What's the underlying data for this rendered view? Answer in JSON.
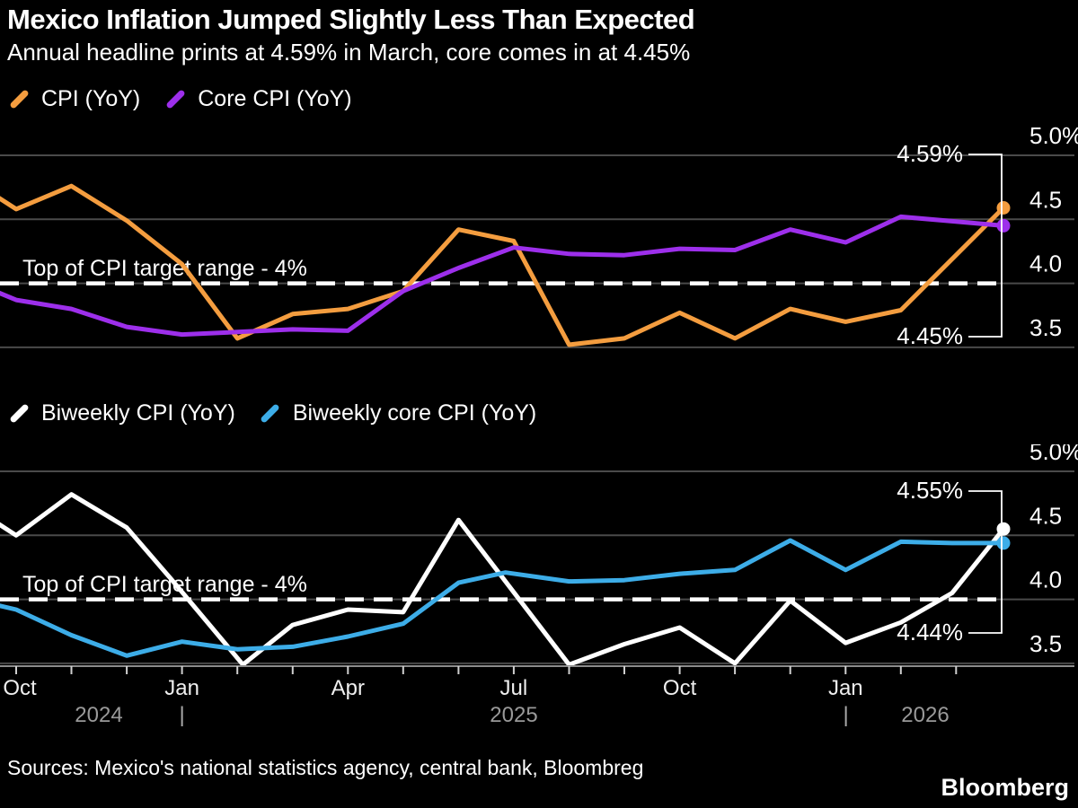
{
  "header": {
    "title": "Mexico Inflation Jumped Slightly Less Than Expected",
    "subtitle": "Annual headline prints at 4.59% in March, core comes in at 4.45%"
  },
  "colors": {
    "background": "#000000",
    "grid": "#4a4a4a",
    "axis": "#8c8c8c",
    "cpi_orange": "#f49d3f",
    "core_purple": "#9d2feb",
    "biweekly_white": "#ffffff",
    "biweekly_core_blue": "#3dade8",
    "year_text": "#999999"
  },
  "y_axis": {
    "ticks": [
      {
        "label": "5.0%",
        "value": 5.0
      },
      {
        "label": "4.5",
        "value": 4.5
      },
      {
        "label": "4.0",
        "value": 4.0
      },
      {
        "label": "3.5",
        "value": 3.5
      }
    ]
  },
  "x_axis": {
    "month_labels": [
      {
        "label": "Oct",
        "mi": 0
      },
      {
        "label": "Jan",
        "mi": 3
      },
      {
        "label": "Apr",
        "mi": 6
      },
      {
        "label": "Jul",
        "mi": 9
      },
      {
        "label": "Oct",
        "mi": 12
      },
      {
        "label": "Jan",
        "mi": 15
      }
    ],
    "year_labels": [
      {
        "label": "2024",
        "x": 110
      },
      {
        "label": "2025",
        "x": 572
      },
      {
        "label": "2026",
        "x": 1030
      }
    ],
    "year_dividers": [
      {
        "label": "|",
        "x": 202.6
      },
      {
        "label": "|",
        "x": 941.6
      }
    ]
  },
  "chart_data": [
    {
      "type": "line",
      "panel": "top",
      "x_categories": [
        "Oct 2024",
        "Nov 2024",
        "Dec 2024",
        "Jan 2025",
        "Feb 2025",
        "Mar 2025",
        "Apr 2025",
        "May 2025",
        "Jun 2025",
        "Jul 2025",
        "Aug 2025",
        "Sep 2025",
        "Oct 2025",
        "Nov 2025",
        "Dec 2025",
        "Jan 2026",
        "Feb 2026",
        "Mar 2026"
      ],
      "x_note": "points are [monthIndex, percent]; 0 = Oct 2024 ... 17 = Mar 2026; fractional indices = lead-in/intermediate readings",
      "ylim": [
        3.5,
        5.0
      ],
      "grid": true,
      "legend_position": "top-left",
      "target_line": {
        "value": 4.0,
        "label": "Top of CPI target range - 4%"
      },
      "series": [
        {
          "name": "CPI (YoY)",
          "color": "#f49d3f",
          "end_label": "4.59%",
          "end_value": 4.59,
          "points": [
            [
              -0.5,
              4.72
            ],
            [
              0,
              4.58
            ],
            [
              1,
              4.76
            ],
            [
              2,
              4.49
            ],
            [
              3,
              4.15
            ],
            [
              4,
              3.57
            ],
            [
              5,
              3.76
            ],
            [
              6,
              3.8
            ],
            [
              7,
              3.94
            ],
            [
              8,
              4.42
            ],
            [
              9,
              4.33
            ],
            [
              10,
              3.52
            ],
            [
              11,
              3.57
            ],
            [
              12,
              3.77
            ],
            [
              13,
              3.57
            ],
            [
              14,
              3.8
            ],
            [
              15,
              3.7
            ],
            [
              16,
              3.79
            ],
            [
              17,
              4.59
            ]
          ]
        },
        {
          "name": "Core CPI (YoY)",
          "color": "#9d2feb",
          "end_label": "4.45%",
          "end_value": 4.45,
          "points": [
            [
              -0.5,
              3.96
            ],
            [
              0,
              3.87
            ],
            [
              1,
              3.8
            ],
            [
              2,
              3.66
            ],
            [
              3,
              3.6
            ],
            [
              4,
              3.62
            ],
            [
              5,
              3.64
            ],
            [
              6,
              3.63
            ],
            [
              7,
              3.94
            ],
            [
              8,
              4.12
            ],
            [
              9,
              4.28
            ],
            [
              10,
              4.23
            ],
            [
              11,
              4.22
            ],
            [
              12,
              4.27
            ],
            [
              13,
              4.26
            ],
            [
              14,
              4.42
            ],
            [
              15,
              4.32
            ],
            [
              16,
              4.52
            ],
            [
              17,
              4.45
            ]
          ]
        }
      ]
    },
    {
      "type": "line",
      "panel": "bottom",
      "x_categories": [
        "Oct 2024",
        "Nov 2024",
        "Dec 2024",
        "Jan 2025",
        "Feb 2025",
        "Mar 2025",
        "Apr 2025",
        "May 2025",
        "Jun 2025",
        "Jul 2025",
        "Aug 2025",
        "Sep 2025",
        "Oct 2025",
        "Nov 2025",
        "Dec 2025",
        "Jan 2026",
        "Feb 2026",
        "Mar 2026"
      ],
      "x_note": "biweekly series; points are [monthIndex, percent] with fractional indices for half-month readings",
      "ylim": [
        3.5,
        5.0
      ],
      "grid": true,
      "legend_position": "top-left",
      "target_line": {
        "value": 4.0,
        "label": "Top of CPI target range - 4%"
      },
      "series": [
        {
          "name": "Biweekly CPI (YoY)",
          "color": "#ffffff",
          "end_label": "4.55%",
          "end_value": 4.55,
          "points": [
            [
              -0.5,
              4.64
            ],
            [
              0,
              4.5
            ],
            [
              1,
              4.82
            ],
            [
              2,
              4.56
            ],
            [
              2.8,
              4.16
            ],
            [
              4.1,
              3.49
            ],
            [
              5,
              3.8
            ],
            [
              6,
              3.92
            ],
            [
              7,
              3.9
            ],
            [
              8,
              4.62
            ],
            [
              10,
              3.49
            ],
            [
              11,
              3.65
            ],
            [
              12,
              3.78
            ],
            [
              13,
              3.5
            ],
            [
              14,
              3.99
            ],
            [
              15,
              3.66
            ],
            [
              16,
              3.82
            ],
            [
              16.5,
              4.05
            ],
            [
              17,
              4.55
            ]
          ]
        },
        {
          "name": "Biweekly core CPI (YoY)",
          "color": "#3dade8",
          "end_label": "4.44%",
          "end_value": 4.44,
          "points": [
            [
              -0.5,
              3.97
            ],
            [
              0,
              3.92
            ],
            [
              1,
              3.72
            ],
            [
              2,
              3.56
            ],
            [
              3,
              3.67
            ],
            [
              4,
              3.61
            ],
            [
              5,
              3.63
            ],
            [
              6,
              3.71
            ],
            [
              7,
              3.81
            ],
            [
              8,
              4.13
            ],
            [
              8.85,
              4.21
            ],
            [
              10,
              4.14
            ],
            [
              11,
              4.15
            ],
            [
              12,
              4.2
            ],
            [
              13,
              4.23
            ],
            [
              14,
              4.46
            ],
            [
              15,
              4.23
            ],
            [
              16,
              4.45
            ],
            [
              16.5,
              4.44
            ],
            [
              17,
              4.44
            ]
          ]
        }
      ]
    }
  ],
  "footer": {
    "sources": "Sources: Mexico's national statistics agency, central bank, Bloombreg",
    "logo": "Bloomberg"
  }
}
